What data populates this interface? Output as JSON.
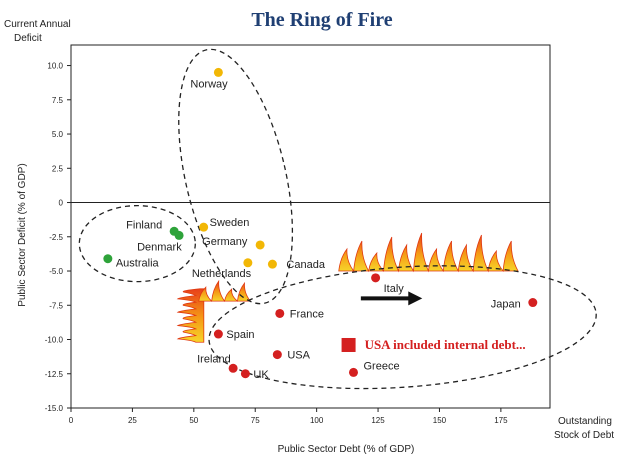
{
  "chart_data": {
    "type": "scatter",
    "title": "The Ring of Fire",
    "xlabel": "Public Sector Debt (% of GDP)",
    "ylabel": "Public Sector Deficit (% of GDP)",
    "corner_y_label": [
      "Current Annual",
      "Deficit"
    ],
    "corner_x_label": [
      "Outstanding",
      "Stock of Debt"
    ],
    "xlim": [
      0,
      195
    ],
    "ylim": [
      -15,
      11.5
    ],
    "x_ticks": [
      "0",
      "25",
      "50",
      "75",
      "100",
      "125",
      "150",
      "175"
    ],
    "y_ticks": [
      "10.0",
      "7.5",
      "5.0",
      "2.5",
      "0",
      "-2.5",
      "-5.0",
      "-7.5",
      "-10.0",
      "-12.5",
      "-15.0"
    ],
    "grid": false,
    "legend": "none",
    "colors": {
      "green": "#2ea33a",
      "yellow": "#f2b705",
      "red": "#d42020",
      "title": "#1f3f73"
    },
    "points": [
      {
        "label": "Norway",
        "x": 60,
        "y": 9.5,
        "color": "yellow"
      },
      {
        "label": "Sweden",
        "x": 54,
        "y": -1.8,
        "color": "yellow"
      },
      {
        "label": "Germany",
        "x": 77,
        "y": -3.1,
        "color": "yellow"
      },
      {
        "label": "Netherlands",
        "x": 72,
        "y": -4.4,
        "color": "yellow"
      },
      {
        "label": "Canada",
        "x": 82,
        "y": -4.5,
        "color": "yellow"
      },
      {
        "label": "Finland",
        "x": 42,
        "y": -2.1,
        "color": "green"
      },
      {
        "label": "Denmark",
        "x": 44,
        "y": -2.4,
        "color": "green"
      },
      {
        "label": "Australia",
        "x": 15,
        "y": -4.1,
        "color": "green"
      },
      {
        "label": "Italy",
        "x": 124,
        "y": -5.5,
        "color": "red"
      },
      {
        "label": "Japan",
        "x": 188,
        "y": -7.3,
        "color": "red"
      },
      {
        "label": "France",
        "x": 85,
        "y": -8.1,
        "color": "red"
      },
      {
        "label": "Spain",
        "x": 60,
        "y": -9.6,
        "color": "red"
      },
      {
        "label": "USA",
        "x": 84,
        "y": -11.1,
        "color": "red"
      },
      {
        "label": "Ireland",
        "x": 66,
        "y": -12.1,
        "color": "red"
      },
      {
        "label": "UK",
        "x": 71,
        "y": -12.5,
        "color": "red"
      },
      {
        "label": "Greece",
        "x": 115,
        "y": -12.4,
        "color": "red"
      }
    ],
    "annotation": {
      "text": "USA included internal debt...",
      "marker": {
        "x": 113,
        "y": -10.4,
        "shape": "square",
        "color": "red"
      }
    }
  }
}
